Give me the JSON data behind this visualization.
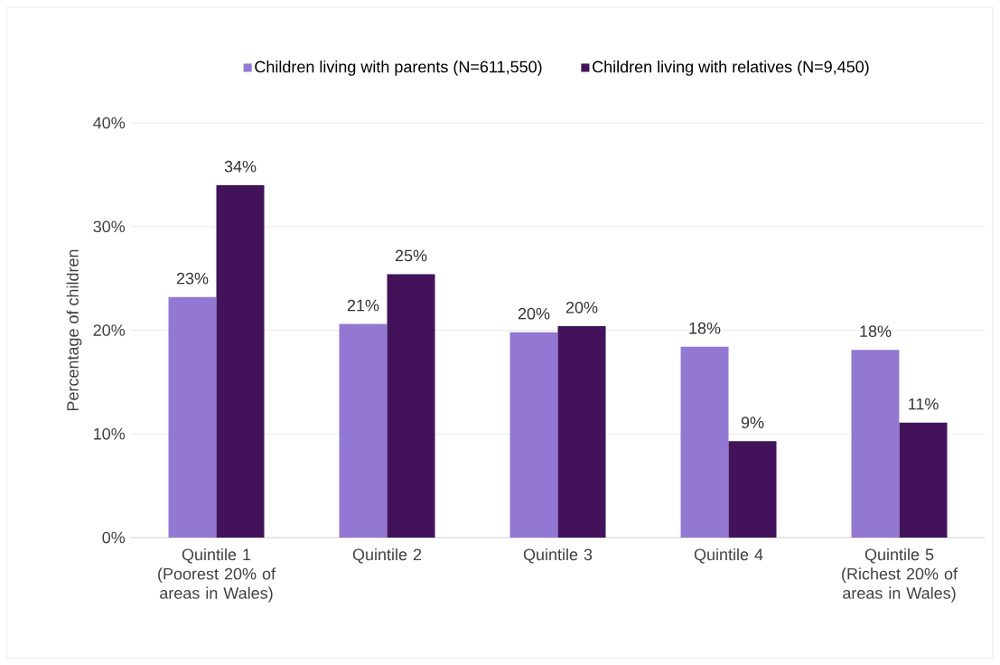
{
  "chart_data": {
    "type": "bar",
    "ylabel": "Percentage of children",
    "categories": [
      "Quintile 1 (Poorest 20% of areas in Wales)",
      "Quintile 2",
      "Quintile 3",
      "Quintile 4",
      "Quintile 5 (Richest 20% of areas in Wales)"
    ],
    "series": [
      {
        "name": "Children living with parents (N=611,550)",
        "color": "#9278d2",
        "values": [
          23.2,
          20.6,
          19.8,
          18.4,
          18.1
        ],
        "value_labels": [
          "23%",
          "21%",
          "20%",
          "18%",
          "18%"
        ]
      },
      {
        "name": "Children living with relatives (N=9,450)",
        "color": "#42135a",
        "values": [
          34.0,
          25.4,
          20.4,
          9.3,
          11.1
        ],
        "value_labels": [
          "34%",
          "25%",
          "20%",
          "9%",
          "11%"
        ]
      }
    ],
    "ylim": [
      0,
      40
    ],
    "yticks": [
      {
        "value": 0,
        "label": "0%"
      },
      {
        "value": 10,
        "label": "10%"
      },
      {
        "value": 20,
        "label": "20%"
      },
      {
        "value": 30,
        "label": "30%"
      },
      {
        "value": 40,
        "label": "40%"
      }
    ],
    "grid": "y",
    "legend": "top"
  }
}
